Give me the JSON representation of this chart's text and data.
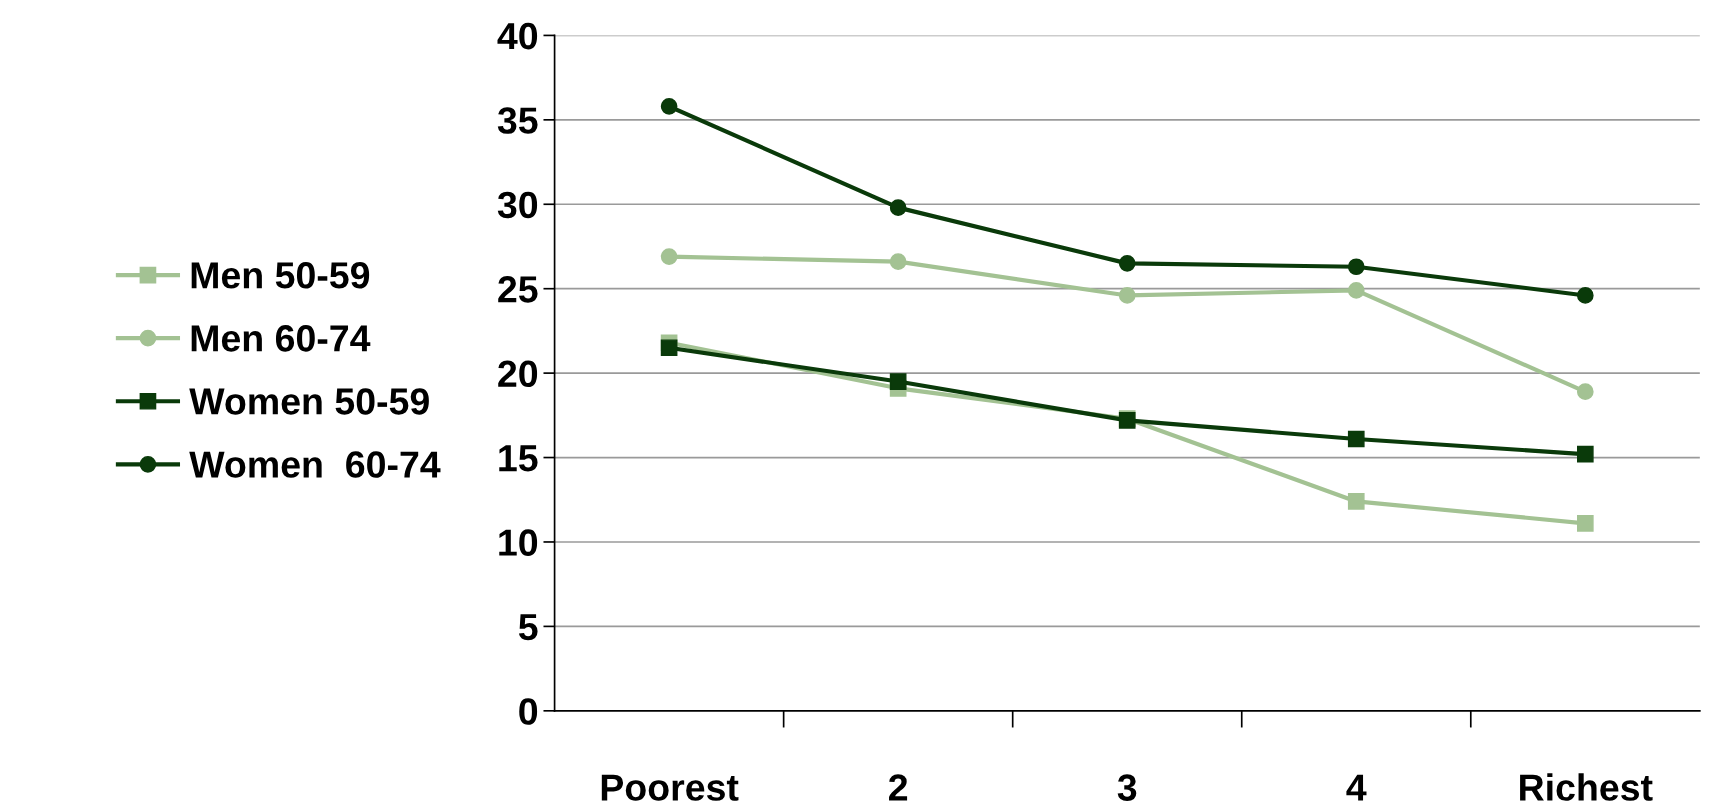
{
  "chart_data": {
    "type": "line",
    "categories": [
      "Poorest",
      "2",
      "3",
      "4",
      "Richest"
    ],
    "series": [
      {
        "name": "Men 50-59",
        "color": "#a3c293",
        "marker": "square",
        "values": [
          21.8,
          19.1,
          17.3,
          12.4,
          11.1
        ]
      },
      {
        "name": "Men 60-74",
        "color": "#a3c293",
        "marker": "circle",
        "values": [
          26.9,
          26.6,
          24.6,
          24.9,
          18.9
        ]
      },
      {
        "name": "Women 50-59",
        "color": "#0a3a0a",
        "marker": "square",
        "values": [
          21.5,
          19.5,
          17.2,
          16.1,
          15.2
        ]
      },
      {
        "name": "Women  60-74",
        "color": "#0a3a0a",
        "marker": "circle",
        "values": [
          35.8,
          29.8,
          26.5,
          26.3,
          24.6
        ]
      }
    ],
    "ylim": [
      0,
      40
    ],
    "yticks": [
      0,
      5,
      10,
      15,
      20,
      25,
      30,
      35,
      40
    ],
    "grid": "y",
    "legend": "left",
    "line_style": "solid"
  }
}
